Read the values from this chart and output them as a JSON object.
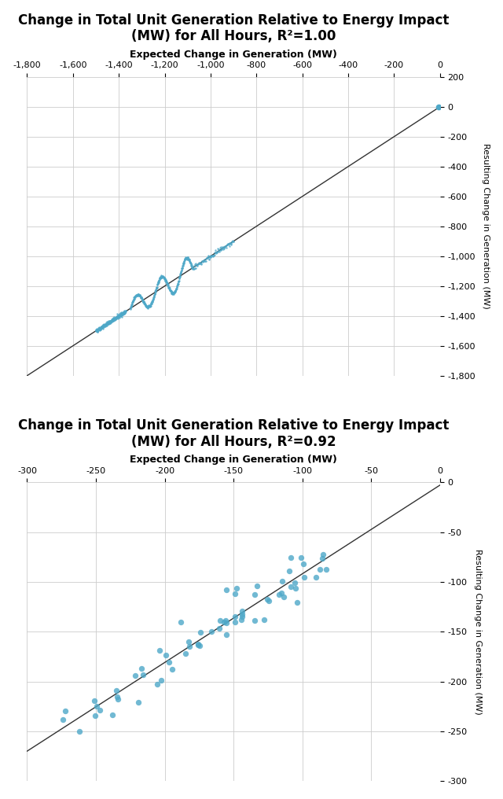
{
  "plot1": {
    "title": "Change in Total Unit Generation Relative to Energy Impact\n(MW) for All Hours, R²=1.00",
    "xlabel": "Expected Change in Generation (MW)",
    "ylabel": "Resulting Change in Generation (MW)",
    "xlim": [
      -1800,
      0
    ],
    "ylim": [
      -1800,
      200
    ],
    "xticks": [
      -1800,
      -1600,
      -1400,
      -1200,
      -1000,
      -800,
      -600,
      -400,
      -200,
      0
    ],
    "yticks": [
      200,
      0,
      -200,
      -400,
      -600,
      -800,
      -1000,
      -1200,
      -1400,
      -1600,
      -1800
    ],
    "line_x": [
      -1800,
      0
    ],
    "line_y": [
      -1800,
      0
    ],
    "scatter_color": "#4EA8C8",
    "line_color": "#333333"
  },
  "plot2": {
    "title": "Change in Total Unit Generation Relative to Energy Impact\n(MW) for All Hours, R²=0.92",
    "xlabel": "Expected Change in Generation (MW)",
    "ylabel": "Resulting Change in Generation (MW)",
    "xlim": [
      -300,
      0
    ],
    "ylim": [
      -300,
      0
    ],
    "xticks": [
      -300,
      -250,
      -200,
      -150,
      -100,
      -50,
      0
    ],
    "yticks": [
      0,
      -50,
      -100,
      -150,
      -200,
      -250,
      -300
    ],
    "scatter_color": "#4EA8C8",
    "line_color": "#333333"
  },
  "background_color": "#ffffff",
  "grid_color": "#cccccc"
}
